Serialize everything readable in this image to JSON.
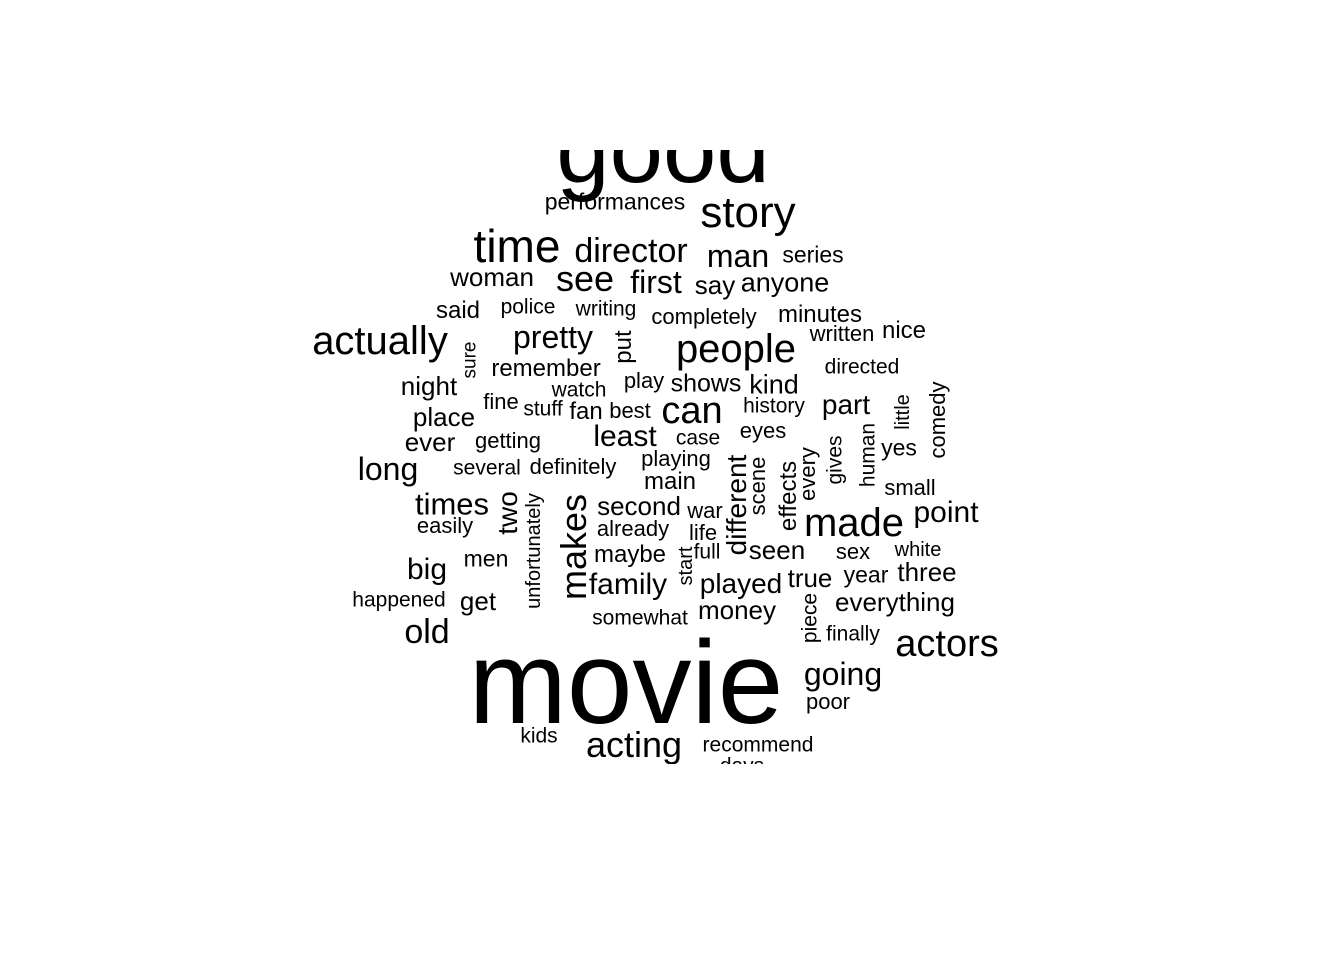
{
  "words": [
    "good",
    "movie",
    "story",
    "performances",
    "time",
    "director",
    "man",
    "series",
    "see",
    "first",
    "say",
    "anyone",
    "woman",
    "said",
    "police",
    "writing",
    "minutes",
    "completely",
    "actually",
    "pretty",
    "people",
    "written",
    "nice",
    "put",
    "sure",
    "remember",
    "directed",
    "night",
    "watch",
    "play",
    "shows",
    "kind",
    "fine",
    "stuff",
    "fan",
    "best",
    "can",
    "history",
    "part",
    "place",
    "little",
    "comedy",
    "ever",
    "getting",
    "least",
    "case",
    "eyes",
    "yes",
    "long",
    "several",
    "definitely",
    "playing",
    "human",
    "gives",
    "every",
    "effects",
    "scene",
    "different",
    "main",
    "small",
    "times",
    "two",
    "unfortunately",
    "makes",
    "second",
    "war",
    "made",
    "point",
    "easily",
    "already",
    "life",
    "big",
    "men",
    "maybe",
    "start",
    "full",
    "seen",
    "sex",
    "white",
    "family",
    "played",
    "true",
    "year",
    "three",
    "happened",
    "get",
    "somewhat",
    "money",
    "piece",
    "everything",
    "old",
    "finally",
    "actors",
    "going",
    "poor",
    "kids",
    "acting",
    "recommend",
    "days"
  ],
  "colors": {
    "text": "#000000",
    "background": "#ffffff"
  }
}
